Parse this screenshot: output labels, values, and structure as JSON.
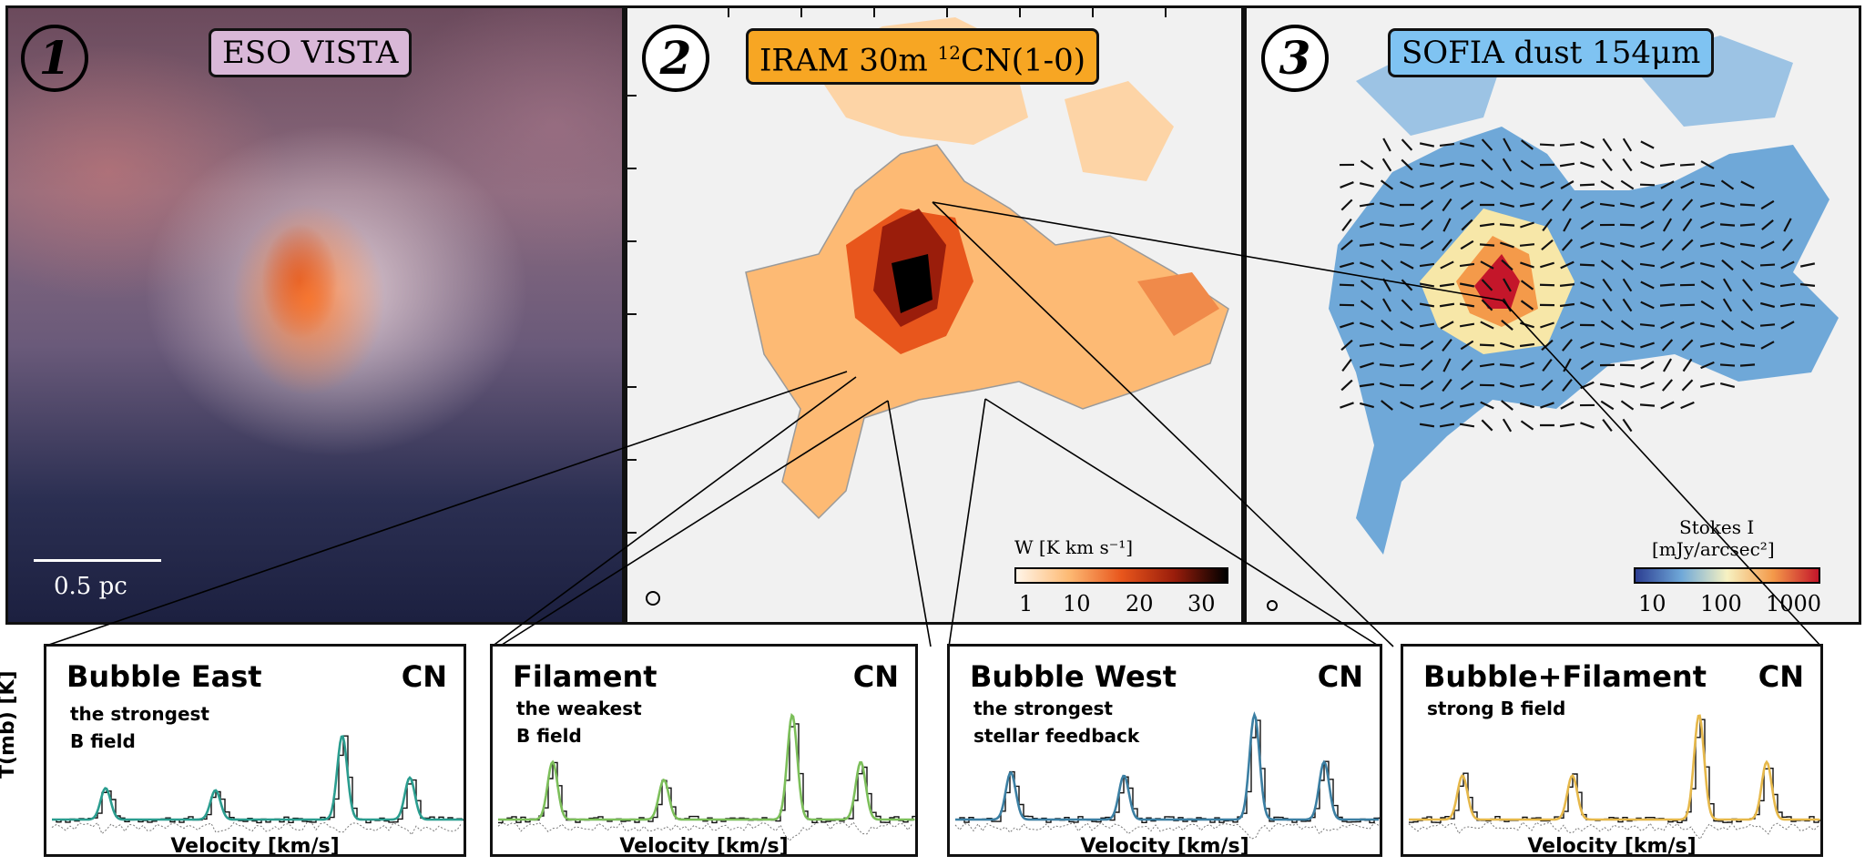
{
  "panels": [
    {
      "number": "1",
      "title": "ESO VISTA",
      "scalebar": "0.5 pc"
    },
    {
      "number": "2",
      "title_prefix": "IRAM 30m ",
      "title_sup": "12",
      "title_suffix": "CN(1-0)",
      "colorbar": {
        "label": "W  [K km s⁻¹]",
        "ticks": [
          "1",
          "10",
          "20",
          "30"
        ],
        "colors": [
          "#fff5e8",
          "#fdba74",
          "#e8561c",
          "#9a1d0b",
          "#000000"
        ]
      }
    },
    {
      "number": "3",
      "title": "SOFIA dust 154μm",
      "colorbar": {
        "label_line1": "Stokes I",
        "label_line2": "[mJy/arcsec²]",
        "ticks": [
          "10",
          "100",
          "1000"
        ],
        "colors": [
          "#2c3e92",
          "#6fa8d8",
          "#f7f2c2",
          "#f49a4a",
          "#c4162a"
        ]
      }
    }
  ],
  "spectra_ylabel": "T(mb) [K]",
  "spectra": [
    {
      "title": "Bubble East",
      "molecule": "CN",
      "subtitle": [
        "the strongest",
        "B field"
      ],
      "xlabel": "Velocity [km/s]",
      "color": "#2a9d8f",
      "peaks": [
        0.3,
        0.28,
        0.8,
        0.4
      ]
    },
    {
      "title": "Filament",
      "molecule": "CN",
      "subtitle": [
        "the weakest",
        "B field"
      ],
      "xlabel": "Velocity [km/s]",
      "color": "#7cbf5a",
      "peaks": [
        0.55,
        0.38,
        1.0,
        0.55
      ]
    },
    {
      "title": "Bubble West",
      "molecule": "CN",
      "subtitle": [
        "the strongest",
        "stellar feedback"
      ],
      "xlabel": "Velocity [km/s]",
      "color": "#3b7fa3",
      "peaks": [
        0.45,
        0.42,
        1.0,
        0.55
      ]
    },
    {
      "title": "Bubble+Filament",
      "molecule": "CN",
      "subtitle": [
        "strong B field"
      ],
      "xlabel": "Velocity [km/s]",
      "color": "#e6b84a",
      "peaks": [
        0.42,
        0.42,
        1.0,
        0.55
      ]
    }
  ]
}
